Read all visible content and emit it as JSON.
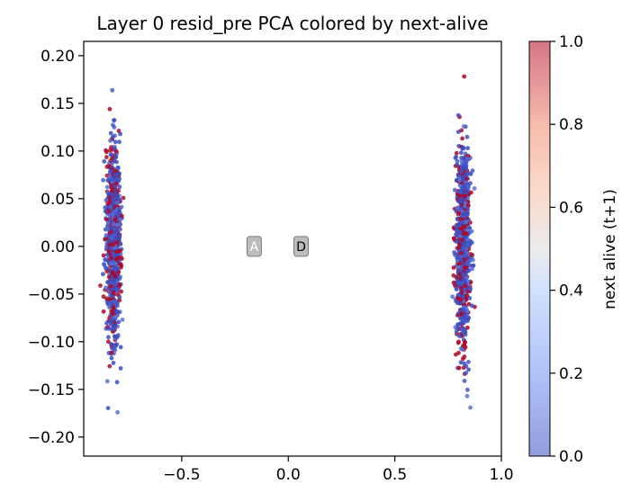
{
  "chart_data": {
    "type": "scatter",
    "title": "Layer 0 resid_pre PCA colored by next-alive",
    "xlabel": "",
    "ylabel": "",
    "xlim": [
      -0.96,
      1.0
    ],
    "ylim": [
      -0.22,
      0.215
    ],
    "x_ticks": [
      {
        "value": -0.5,
        "label": "−0.5"
      },
      {
        "value": 0.0,
        "label": "0.0"
      },
      {
        "value": 0.5,
        "label": "0.5"
      },
      {
        "value": 1.0,
        "label": "1.0"
      }
    ],
    "y_ticks": [
      {
        "value": 0.2,
        "label": "0.20"
      },
      {
        "value": 0.15,
        "label": "0.15"
      },
      {
        "value": 0.1,
        "label": "0.10"
      },
      {
        "value": 0.05,
        "label": "0.05"
      },
      {
        "value": 0.0,
        "label": "0.00"
      },
      {
        "value": -0.05,
        "label": "−0.05"
      },
      {
        "value": -0.1,
        "label": "−0.10"
      },
      {
        "value": -0.15,
        "label": "−0.15"
      },
      {
        "value": -0.2,
        "label": "−0.20"
      }
    ],
    "colormap": "coolwarm",
    "color_low": "#3b4cc0",
    "color_mid": "#dddddd",
    "color_high": "#b40426",
    "colorbar": {
      "label": "next alive (t+1)",
      "range": [
        0.0,
        1.0
      ],
      "ticks": [
        {
          "value": 0.0,
          "label": "0.0"
        },
        {
          "value": 0.2,
          "label": "0.2"
        },
        {
          "value": 0.4,
          "label": "0.4"
        },
        {
          "value": 0.6,
          "label": "0.6"
        },
        {
          "value": 0.8,
          "label": "0.8"
        },
        {
          "value": 1.0,
          "label": "1.0"
        }
      ]
    },
    "clusters": [
      {
        "center_x": -0.82,
        "x_spread": 0.03,
        "y_range": [
          -0.2,
          0.19
        ]
      },
      {
        "center_x": 0.82,
        "x_spread": 0.03,
        "y_range": [
          -0.2,
          0.195
        ]
      }
    ],
    "annotations": [
      {
        "text": "A",
        "x": -0.16,
        "y": 0.0
      },
      {
        "text": "D",
        "x": 0.06,
        "y": 0.0
      }
    ]
  }
}
